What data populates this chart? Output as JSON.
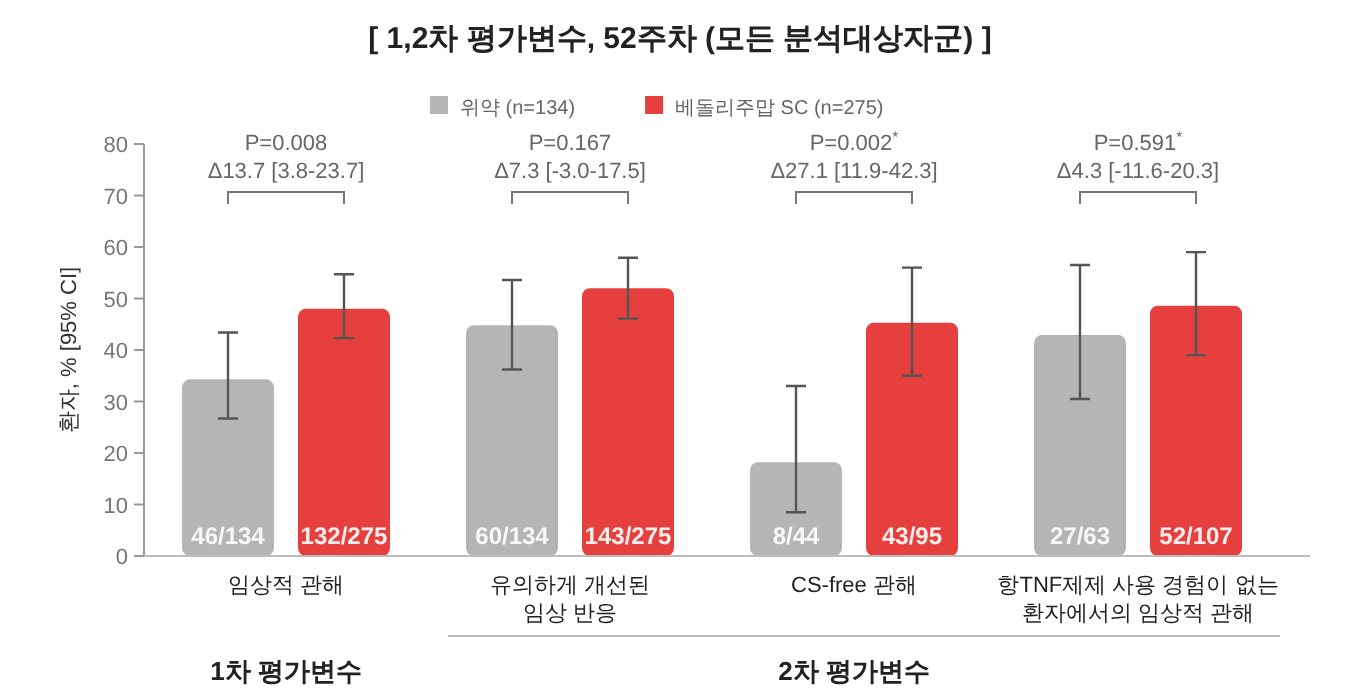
{
  "chart_data": {
    "type": "bar",
    "title": "[ 1,2차 평가변수, 52주차 (모든 분석대상자군) ]",
    "ylabel": "환자, % [95% CI]",
    "categories": [
      "임상적 관해",
      "유의하게 개선된\n임상 반응",
      "CS-free 관해",
      "항TNF제제 사용 경험이 없는\n환자에서의 임상적 관해"
    ],
    "series": [
      {
        "name": "위약 (n=134)",
        "color": "#b5b5b5",
        "values": [
          34.3,
          44.8,
          18.2,
          42.9
        ],
        "errors": [
          [
            26.7,
            43.4
          ],
          [
            36.2,
            53.6
          ],
          [
            8.5,
            33
          ],
          [
            30.5,
            56.5
          ]
        ],
        "value_labels": [
          "46/134",
          "60/134",
          "8/44",
          "27/63"
        ]
      },
      {
        "name": "베돌리주맙 SC (n=275)",
        "color": "#e5403d",
        "values": [
          48.0,
          52.0,
          45.3,
          48.6
        ],
        "errors": [
          [
            42.3,
            54.7
          ],
          [
            46.1,
            57.9
          ],
          [
            35,
            56
          ],
          [
            39,
            59
          ]
        ],
        "value_labels": [
          "132/275",
          "143/275",
          "43/95",
          "52/107"
        ]
      }
    ],
    "ylim": [
      0,
      80
    ],
    "yticks": [
      0,
      10,
      20,
      30,
      40,
      50,
      60,
      70,
      80
    ],
    "legend": "top",
    "grid": false,
    "annotations": [
      "P=0.008\nΔ13.7 [3.8-23.7]",
      "P=0.167\nΔ7.3 [-3.0-17.5]",
      "P=0.002$^{*}$\nΔ27.1 [11.9-42.3]",
      "P=0.591$^{*}$\nΔ4.3 [-11.6-20.3]",
      "1차 평가변수",
      "2차 평가변수"
    ]
  }
}
